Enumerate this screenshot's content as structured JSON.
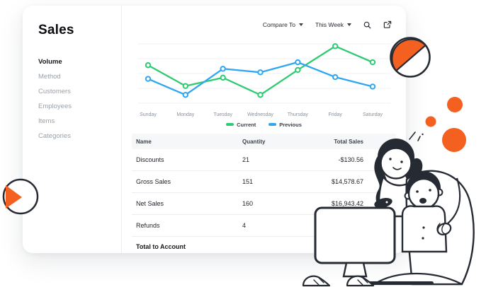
{
  "sidebar": {
    "title": "Sales",
    "items": [
      {
        "label": "Volume",
        "active": true
      },
      {
        "label": "Method",
        "active": false
      },
      {
        "label": "Customers",
        "active": false
      },
      {
        "label": "Employees",
        "active": false
      },
      {
        "label": "Items",
        "active": false
      },
      {
        "label": "Categories",
        "active": false
      }
    ]
  },
  "toolbar": {
    "compare_label": "Compare To",
    "period_label": "This Week",
    "icons": {
      "search": "search-icon",
      "share": "share-icon"
    }
  },
  "chart_data": {
    "type": "line",
    "title": "",
    "categories": [
      "Sunday",
      "Monday",
      "Tuesday",
      "Wednesday",
      "Thursday",
      "Friday",
      "Saturday"
    ],
    "series": [
      {
        "name": "Current",
        "color": "#2ECB70",
        "values": [
          64,
          29,
          43,
          14,
          56,
          96,
          69
        ]
      },
      {
        "name": "Previous",
        "color": "#2FA7F0",
        "values": [
          41,
          14,
          58,
          52,
          69,
          44,
          28
        ]
      }
    ],
    "ylim": [
      0,
      100
    ],
    "grid": true,
    "legend_position": "bottom",
    "xlabel": "",
    "ylabel": ""
  },
  "table": {
    "columns": [
      "Name",
      "Quantity",
      "Total Sales"
    ],
    "rows": [
      {
        "name": "Discounts",
        "quantity": "21",
        "total": "-$130.56"
      },
      {
        "name": "Gross Sales",
        "quantity": "151",
        "total": "$14,578.67"
      },
      {
        "name": "Net Sales",
        "quantity": "160",
        "total": "$16,943.42"
      },
      {
        "name": "Refunds",
        "quantity": "4",
        "total": ""
      }
    ],
    "footer": {
      "label": "Total to Account",
      "total": ""
    }
  },
  "colors": {
    "accent_orange": "#F4601F",
    "line_current": "#2ECB70",
    "line_previous": "#2FA7F0",
    "ink": "#262A32",
    "grid": "#F0F1F4"
  }
}
